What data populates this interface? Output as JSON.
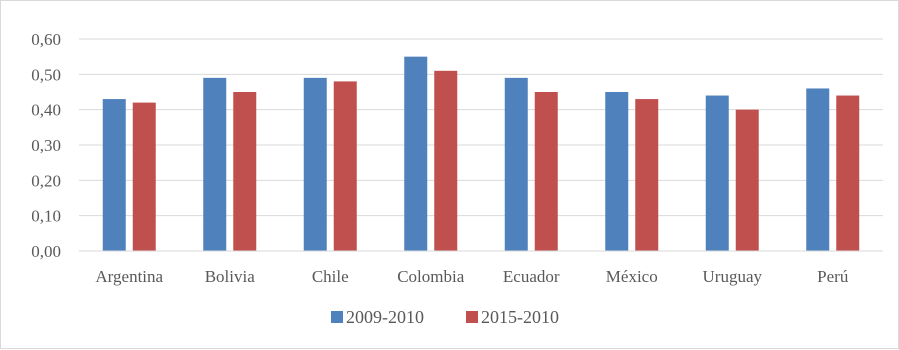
{
  "chart_data": {
    "type": "bar",
    "title": "",
    "xlabel": "",
    "ylabel": "",
    "categories": [
      "Argentina",
      "Bolivia",
      "Chile",
      "Colombia",
      "Ecuador",
      "México",
      "Uruguay",
      "Perú"
    ],
    "series": [
      {
        "name": "2009-2010",
        "color": "#4f81bd",
        "values": [
          0.43,
          0.49,
          0.49,
          0.55,
          0.49,
          0.45,
          0.44,
          0.46
        ]
      },
      {
        "name": "2015-2010",
        "color": "#c0504d",
        "values": [
          0.42,
          0.45,
          0.48,
          0.51,
          0.45,
          0.43,
          0.4,
          0.44
        ]
      }
    ],
    "ylim": [
      0,
      0.6
    ],
    "yticks": [
      "0,00",
      "0,10",
      "0,20",
      "0,30",
      "0,40",
      "0,50",
      "0,60"
    ],
    "grid": true,
    "gridColor": "#d9d9d9",
    "legend": "bottom"
  }
}
